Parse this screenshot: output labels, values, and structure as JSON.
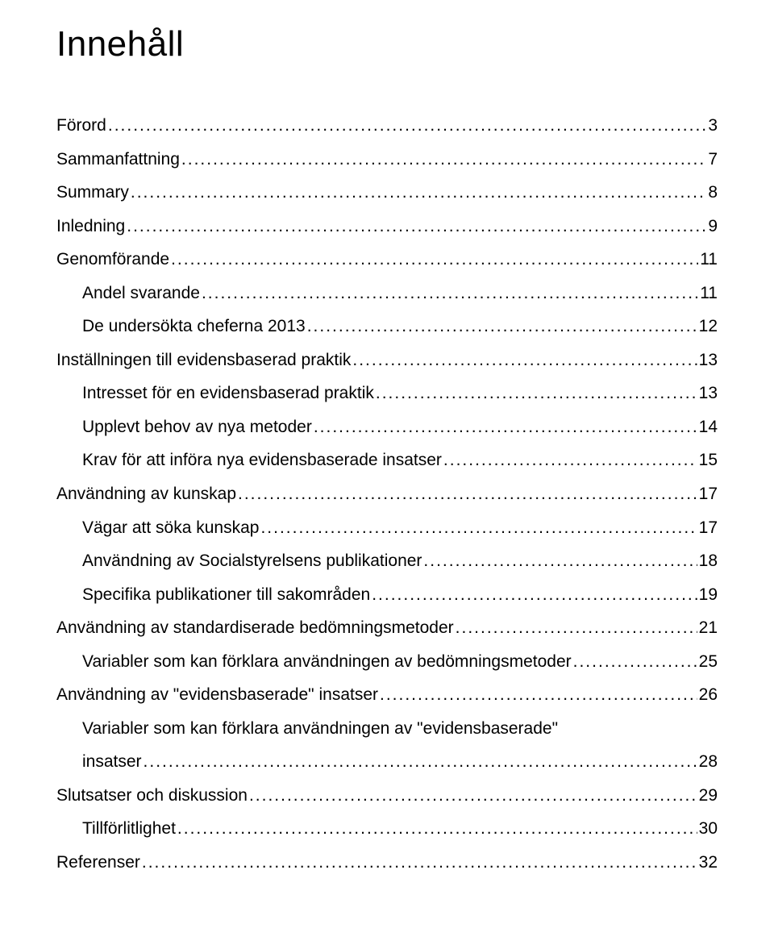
{
  "title": "Innehåll",
  "entries": [
    {
      "label": "Förord",
      "page": "3",
      "level": 0
    },
    {
      "label": "Sammanfattning",
      "page": "7",
      "level": 0
    },
    {
      "label": "Summary",
      "page": "8",
      "level": 0
    },
    {
      "label": "Inledning",
      "page": "9",
      "level": 0
    },
    {
      "label": "Genomförande",
      "page": "11",
      "level": 0,
      "pgspace": true
    },
    {
      "label": "Andel svarande",
      "page": "11",
      "level": 1
    },
    {
      "label": "De undersökta cheferna 2013",
      "page": "12",
      "level": 1
    },
    {
      "label": "Inställningen till evidensbaserad praktik",
      "page": "13",
      "level": 0,
      "pgspace": true
    },
    {
      "label": "Intresset för en evidensbaserad praktik",
      "page": "13",
      "level": 1
    },
    {
      "label": "Upplevt behov av nya metoder",
      "page": "14",
      "level": 1
    },
    {
      "label": "Krav för att införa nya evidensbaserade insatser",
      "page": "15",
      "level": 1
    },
    {
      "label": "Användning av kunskap",
      "page": "17",
      "level": 0,
      "pgspace": true
    },
    {
      "label": "Vägar att söka kunskap",
      "page": "17",
      "level": 1
    },
    {
      "label": "Användning av Socialstyrelsens publikationer",
      "page": "18",
      "level": 1
    },
    {
      "label": "Specifika publikationer till sakområden",
      "page": "19",
      "level": 1
    },
    {
      "label": "Användning av standardiserade bedömningsmetoder",
      "page": "21",
      "level": 0,
      "pgspace": true
    },
    {
      "label": "Variabler som kan förklara användningen av bedömningsmetoder",
      "page": "25",
      "level": 1
    },
    {
      "label": "Användning av \"evidensbaserade\" insatser",
      "page": "26",
      "level": 0,
      "pgspace": true
    },
    {
      "label": "Variabler som kan förklara användningen av \"evidensbaserade\" insatser",
      "page": "28",
      "level": 1,
      "wrap": true
    },
    {
      "label": "Slutsatser och diskussion",
      "page": "29",
      "level": 0,
      "pgspace": true
    },
    {
      "label": "Tillförlitlighet",
      "page": "30",
      "level": 1
    },
    {
      "label": "Referenser",
      "page": "32",
      "level": 0,
      "pgspace": true
    }
  ],
  "dotChar": "."
}
